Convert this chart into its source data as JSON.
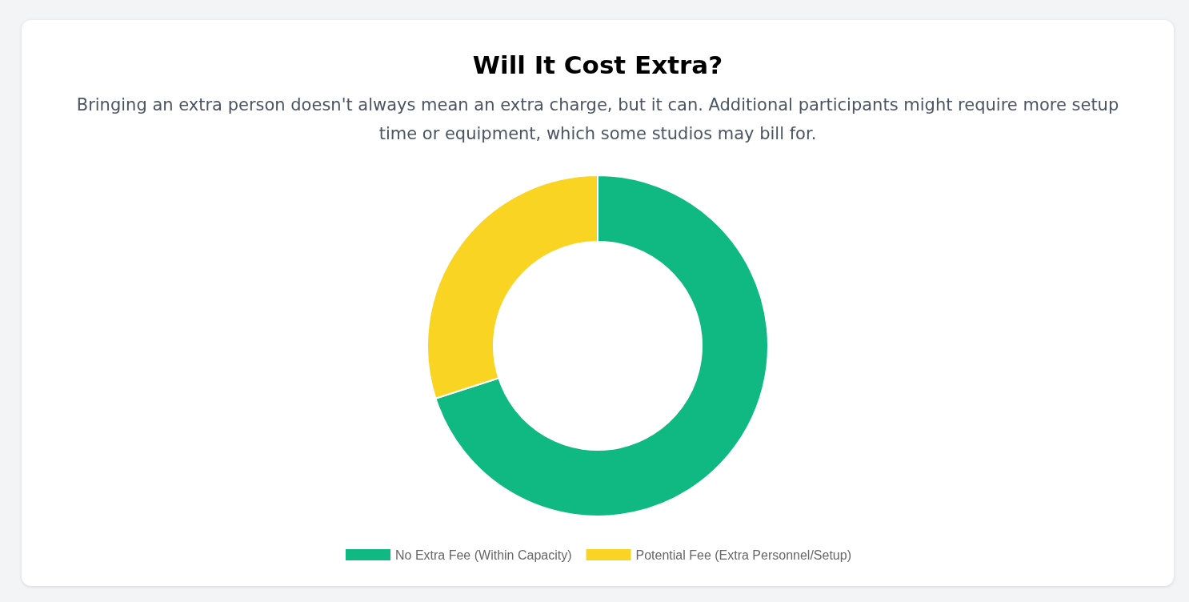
{
  "chart_data": {
    "type": "donut",
    "title": "Will It Cost Extra?",
    "subtitle": "Bringing an extra person doesn't always mean an extra charge, but it can. Additional participants might require more setup time or equipment, which some studios may bill for.",
    "categories": [
      "No Extra Fee (Within Capacity)",
      "Potential Fee (Extra Personnel/Setup)"
    ],
    "values": [
      70,
      30
    ],
    "colors": [
      "#10b981",
      "#f9d423"
    ],
    "legend": "bottom"
  }
}
